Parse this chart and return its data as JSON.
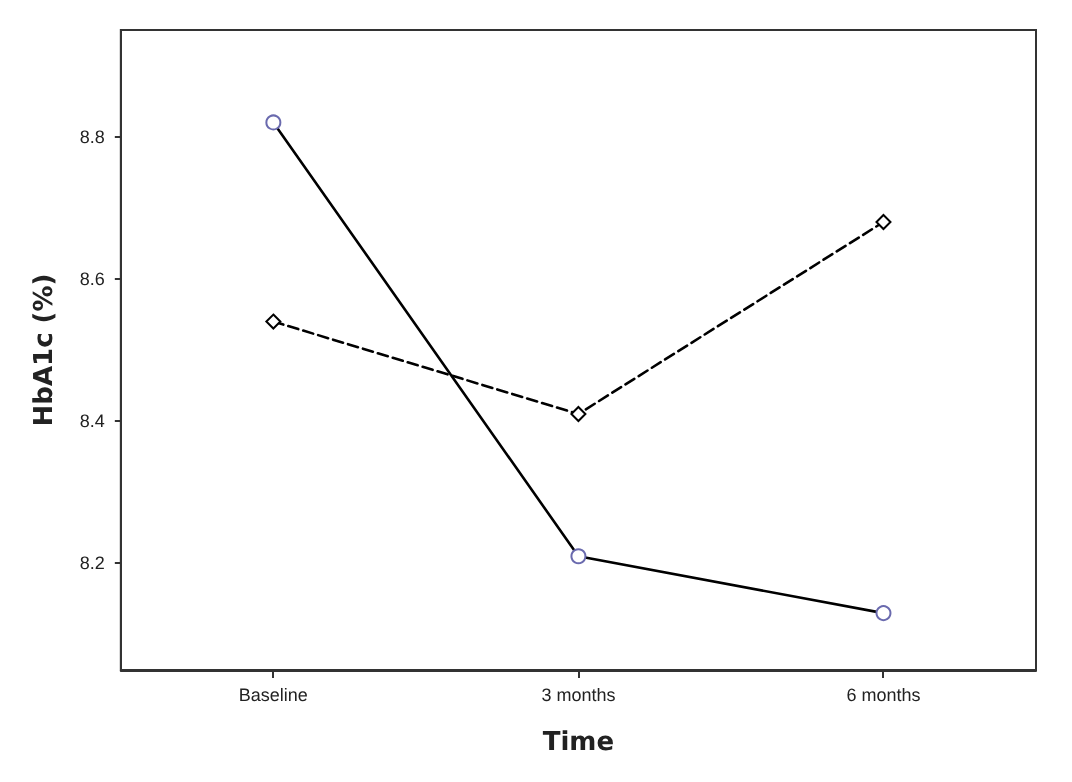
{
  "chart_data": {
    "type": "line",
    "xlabel": "Time",
    "ylabel": "HbA1c (%)",
    "categories": [
      "Baseline",
      "3 months",
      "6 months"
    ],
    "series": [
      {
        "color": "#000000",
        "values": [
          8.82,
          8.21,
          8.13
        ],
        "marker": "circle",
        "line_style": "solid"
      },
      {
        "color": "#000000",
        "values": [
          8.54,
          8.41,
          8.68
        ],
        "marker": "diamond",
        "line_style": "dashed"
      }
    ],
    "ylim": [
      8.05,
      8.95
    ],
    "yticks": [
      8.2,
      8.4,
      8.6,
      8.8
    ],
    "grid": false
  }
}
